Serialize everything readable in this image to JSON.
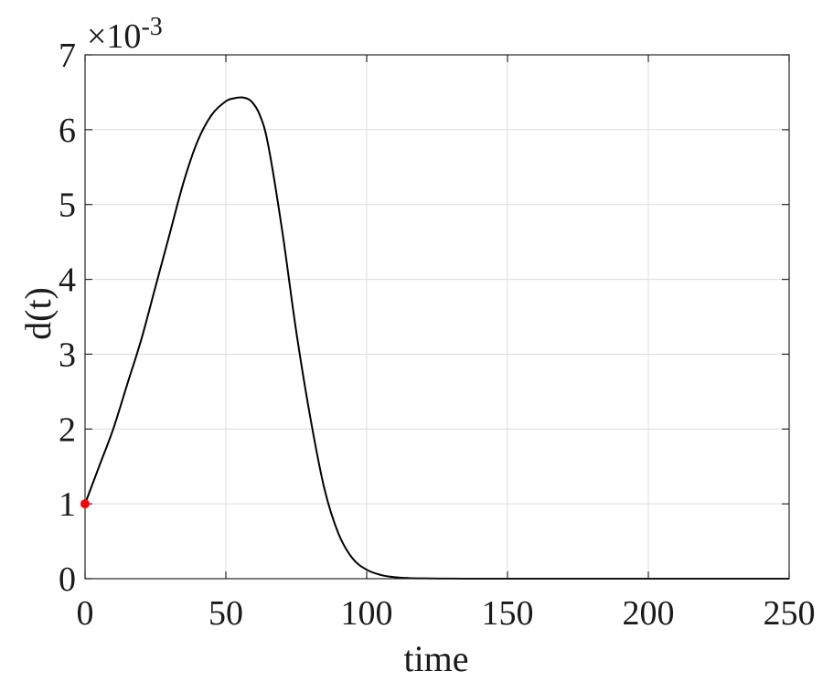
{
  "chart_data": {
    "type": "line",
    "title": "",
    "xlabel": "time",
    "ylabel": "d(t)",
    "exponent_label": "×10",
    "exponent_power": "-3",
    "xlim": [
      0,
      250
    ],
    "ylim": [
      0,
      7
    ],
    "y_scale_factor": 0.001,
    "grid": true,
    "x_ticks": [
      0,
      50,
      100,
      150,
      200,
      250
    ],
    "x_tick_labels": [
      "0",
      "50",
      "100",
      "150",
      "200",
      "250"
    ],
    "y_ticks": [
      0,
      1,
      2,
      3,
      4,
      5,
      6,
      7
    ],
    "y_tick_labels": [
      "0",
      "1",
      "2",
      "3",
      "4",
      "5",
      "6",
      "7"
    ],
    "series": [
      {
        "color": "#000000",
        "x": [
          0,
          5,
          10,
          15,
          20,
          25,
          30,
          35,
          40,
          45,
          50,
          53,
          56,
          59,
          62,
          65,
          70,
          75,
          80,
          85,
          90,
          95,
          100,
          105,
          110,
          115,
          120,
          130,
          140,
          150,
          175,
          200,
          225,
          250
        ],
        "y": [
          1.0,
          1.5,
          2.0,
          2.6,
          3.2,
          3.9,
          4.6,
          5.3,
          5.85,
          6.2,
          6.38,
          6.42,
          6.43,
          6.38,
          6.2,
          5.8,
          4.65,
          3.3,
          2.15,
          1.2,
          0.6,
          0.27,
          0.12,
          0.05,
          0.02,
          0.008,
          0.004,
          0.001,
          0.0005,
          0.0002,
          0.0001,
          0.0,
          0.0,
          0.0
        ]
      }
    ],
    "markers": [
      {
        "x": 0,
        "y": 1.0,
        "color": "#ff0000"
      }
    ]
  }
}
